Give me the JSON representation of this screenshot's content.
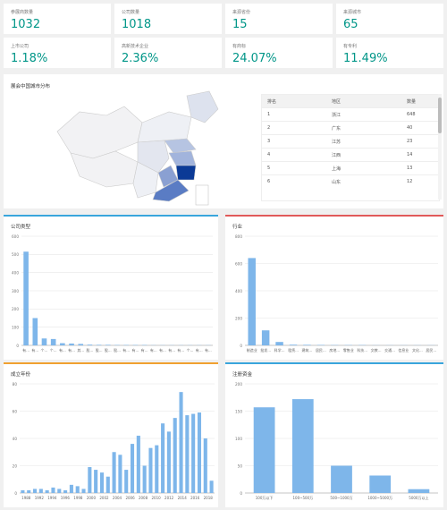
{
  "kpis": [
    {
      "label": "参展商数量",
      "value": "1032"
    },
    {
      "label": "公司数量",
      "value": "1018"
    },
    {
      "label": "来源省份",
      "value": "15"
    },
    {
      "label": "来源城市",
      "value": "65"
    },
    {
      "label": "上市公司",
      "value": "1.18%"
    },
    {
      "label": "高新技术企业",
      "value": "2.36%"
    },
    {
      "label": "有商标",
      "value": "24.07%"
    },
    {
      "label": "有专利",
      "value": "11.49%"
    }
  ],
  "map_panel": {
    "title": "展会中国城市分布",
    "table": {
      "headers": [
        "排名",
        "地区",
        "数量"
      ],
      "rows": [
        [
          "1",
          "浙江",
          "648"
        ],
        [
          "2",
          "广东",
          "40"
        ],
        [
          "3",
          "江苏",
          "23"
        ],
        [
          "4",
          "江西",
          "14"
        ],
        [
          "5",
          "上海",
          "13"
        ],
        [
          "6",
          "山东",
          "12"
        ]
      ]
    }
  },
  "panels": {
    "company_type": "公司类型",
    "industry": "行业",
    "founded": "成立年份",
    "capital": "注册资金"
  },
  "colors": {
    "accent": "#009688",
    "bar": "#7eb6ea",
    "blue_line": "#39a5dc",
    "red_line": "#e05a5a",
    "orange_line": "#f0a030"
  },
  "chart_data": [
    {
      "type": "bar",
      "title": "公司类型",
      "categories": [
        "有...",
        "有...",
        "个...",
        "个...",
        "有...",
        "有...",
        "其...",
        "股...",
        "股...",
        "股...",
        "股...",
        "有...",
        "有...",
        "有...",
        "有...",
        "有...",
        "有...",
        "有...",
        "个...",
        "有...",
        "有..."
      ],
      "values": [
        515,
        150,
        38,
        35,
        12,
        10,
        8,
        4,
        3,
        3,
        2,
        2,
        2,
        2,
        1,
        1,
        1,
        1,
        1,
        1,
        1
      ],
      "ylim": [
        0,
        600
      ],
      "yticks": [
        0,
        100,
        200,
        300,
        400,
        500,
        600
      ]
    },
    {
      "type": "bar",
      "title": "行业",
      "categories": [
        "制造业",
        "批发...",
        "科学...",
        "租赁...",
        "建筑...",
        "居民...",
        "房地...",
        "零售业",
        "科技...",
        "文教...",
        "交通...",
        "信息业",
        "文化...",
        "居民..."
      ],
      "values": [
        640,
        110,
        25,
        5,
        4,
        3,
        2,
        2,
        2,
        1,
        1,
        1,
        1,
        1
      ],
      "ylim": [
        0,
        800
      ],
      "yticks": [
        0,
        200,
        400,
        600,
        800
      ]
    },
    {
      "type": "bar",
      "title": "成立年份",
      "x_labels": [
        "1988",
        "1992",
        "1994",
        "1996",
        "1998",
        "2000",
        "2002",
        "2004",
        "2006",
        "2008",
        "2010",
        "2012",
        "2014",
        "2016",
        "2018"
      ],
      "values": [
        2,
        2,
        3,
        3,
        2,
        4,
        3,
        2,
        6,
        5,
        3,
        19,
        17,
        15,
        12,
        30,
        28,
        17,
        36,
        42,
        20,
        33,
        35,
        51,
        45,
        55,
        74,
        57,
        58,
        59,
        40,
        9
      ],
      "ylim": [
        0,
        80
      ],
      "yticks": [
        0,
        20,
        40,
        60,
        80
      ]
    },
    {
      "type": "bar",
      "title": "注册资金",
      "categories": [
        "100万以下",
        "100~500万",
        "500~1000万",
        "1000~5000万",
        "5000万以上"
      ],
      "values": [
        157,
        172,
        50,
        32,
        7
      ],
      "ylim": [
        0,
        200
      ],
      "yticks": [
        0,
        50,
        100,
        150,
        200
      ]
    }
  ]
}
